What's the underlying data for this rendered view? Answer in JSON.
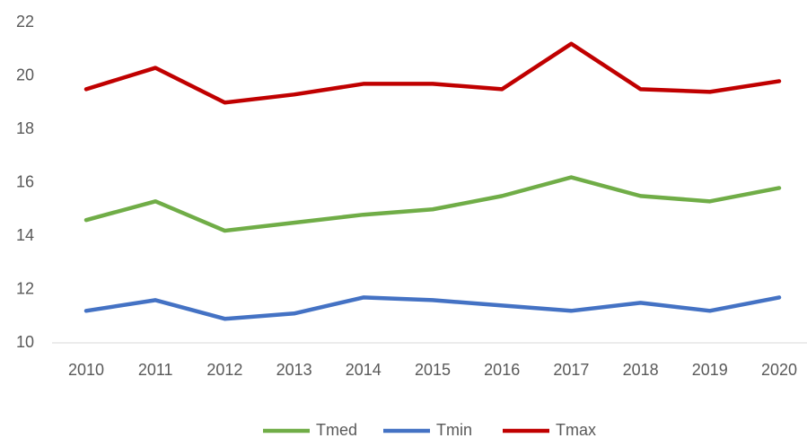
{
  "chart_data": {
    "type": "line",
    "categories": [
      "2010",
      "2011",
      "2012",
      "2013",
      "2014",
      "2015",
      "2016",
      "2017",
      "2018",
      "2019",
      "2020"
    ],
    "series": [
      {
        "name": "Tmed",
        "color": "#70ad47",
        "values": [
          14.6,
          15.3,
          14.2,
          14.5,
          14.8,
          15.0,
          15.5,
          16.2,
          15.5,
          15.3,
          15.8
        ]
      },
      {
        "name": "Tmin",
        "color": "#4472c4",
        "values": [
          11.2,
          11.6,
          10.9,
          11.1,
          11.7,
          11.6,
          11.4,
          11.2,
          11.5,
          11.2,
          11.7
        ]
      },
      {
        "name": "Tmax",
        "color": "#c00000",
        "values": [
          19.5,
          20.3,
          19.0,
          19.3,
          19.7,
          19.7,
          19.5,
          21.2,
          19.5,
          19.4,
          19.8
        ]
      }
    ],
    "ylim": [
      10,
      22
    ],
    "yticks": [
      10,
      12,
      14,
      16,
      18,
      20,
      22
    ],
    "grid": false,
    "legend": "bottom"
  }
}
